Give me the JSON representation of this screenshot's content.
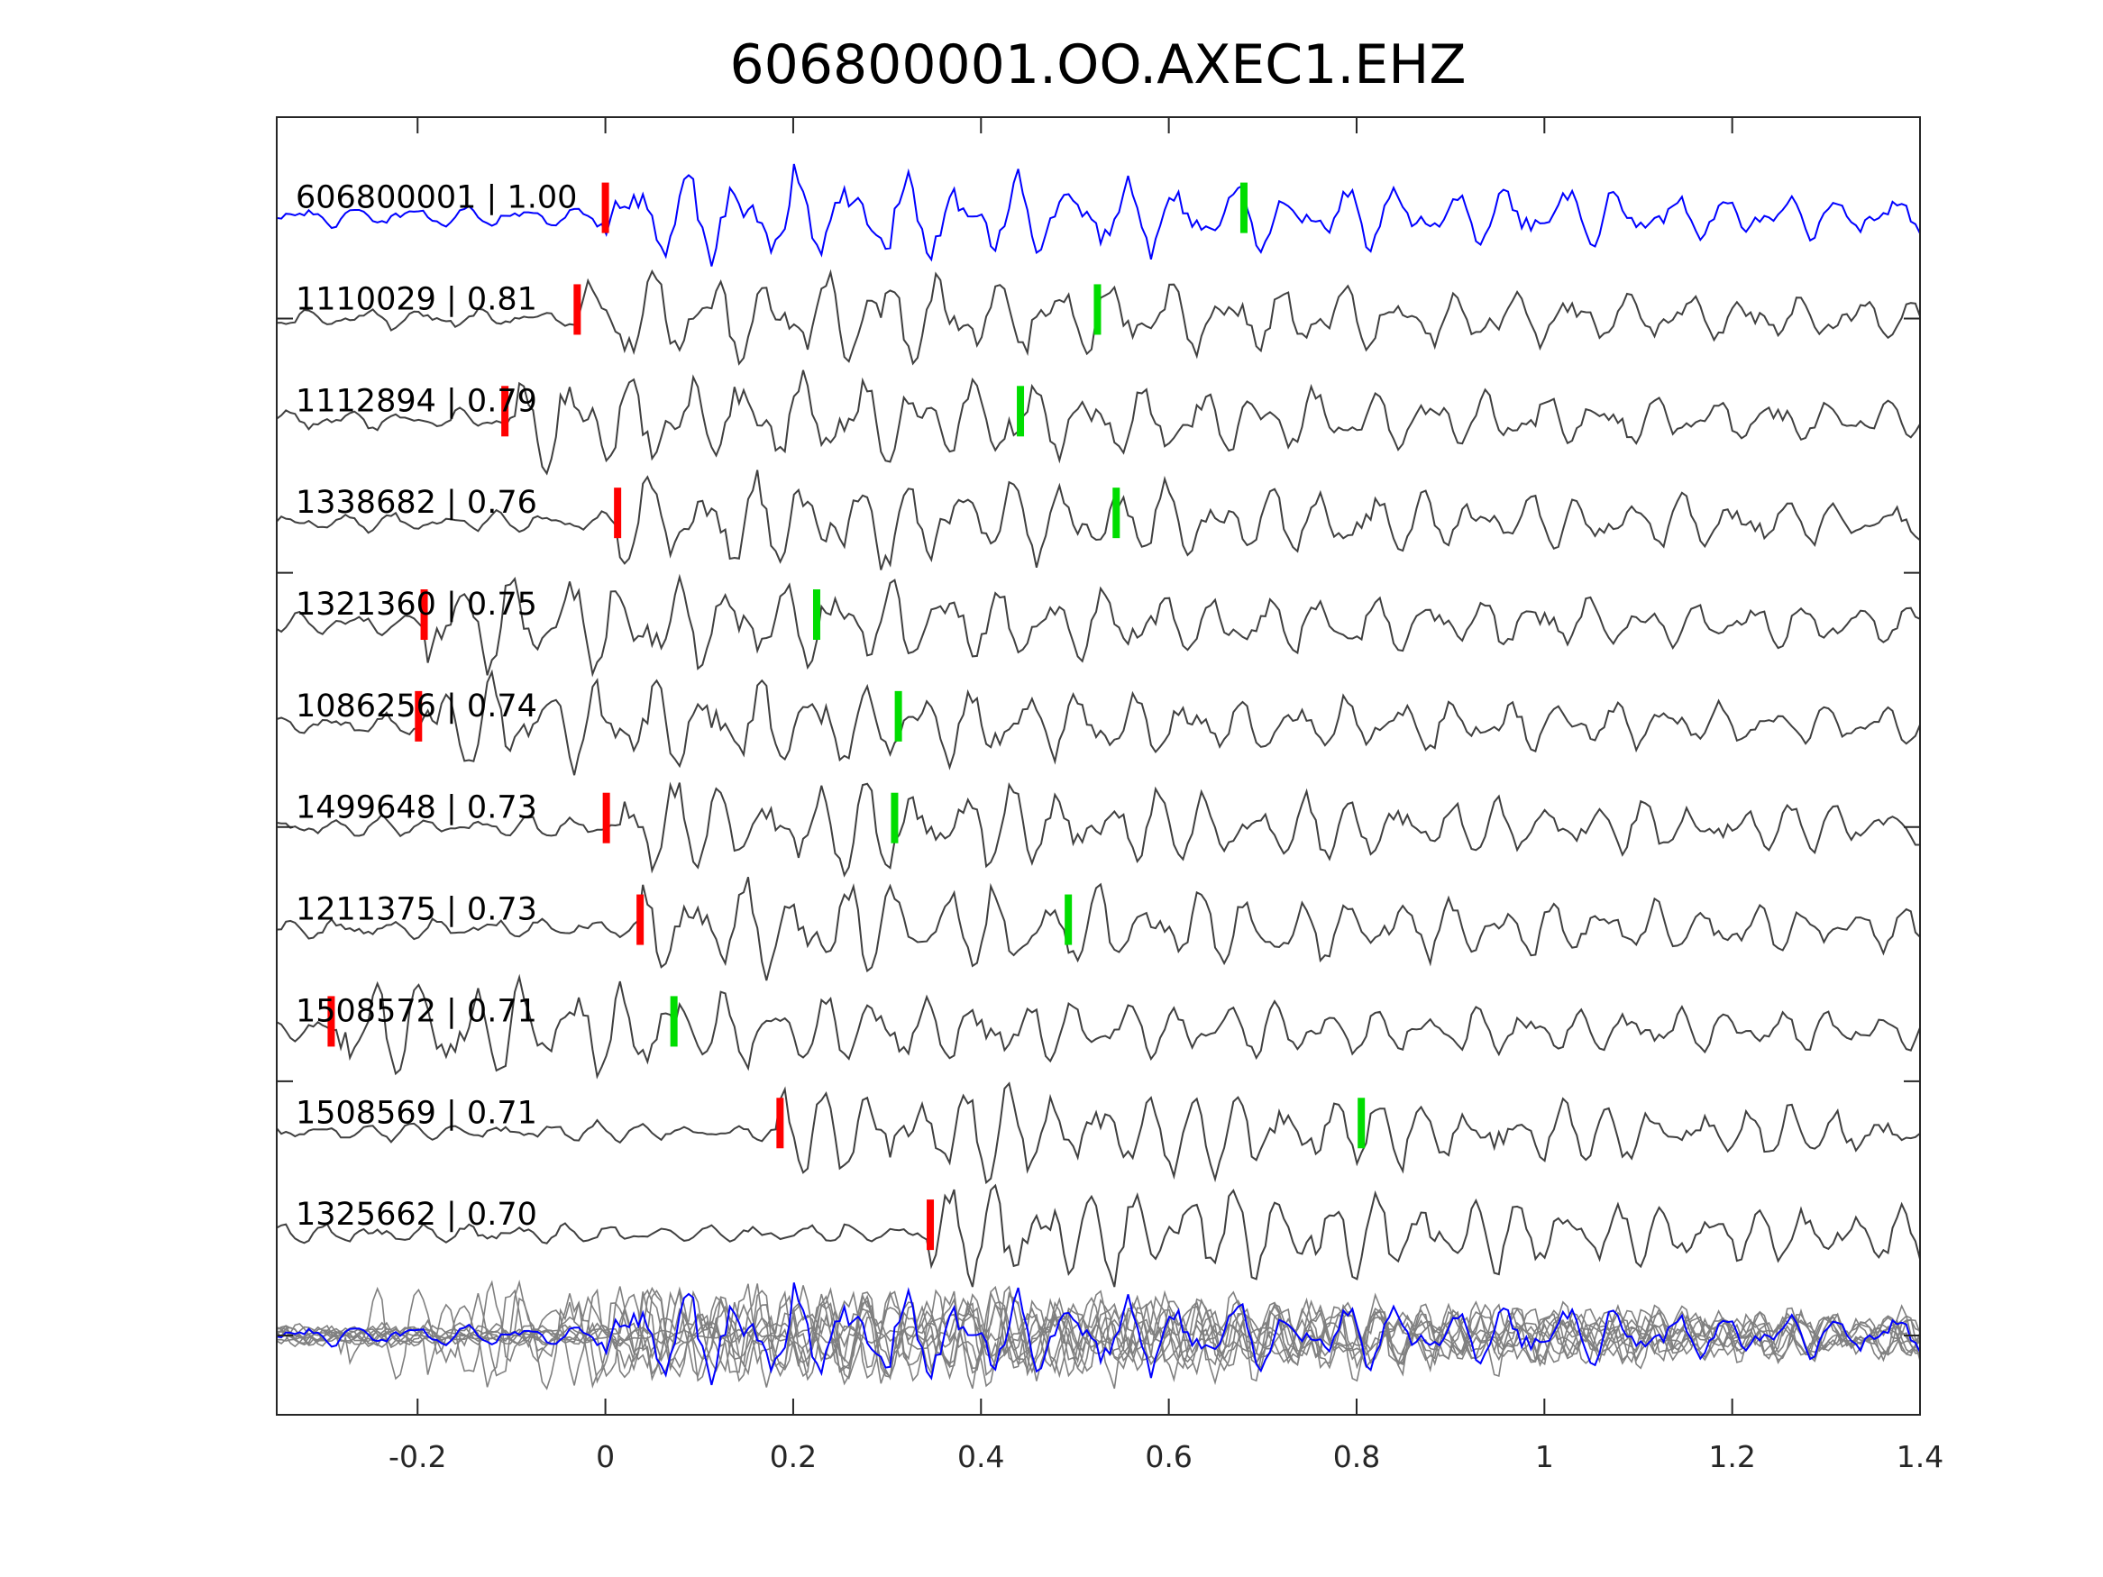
{
  "chart_data": {
    "type": "line",
    "title": "606800001.OO.AXEC1.EHZ",
    "xlabel": "",
    "ylabel": "",
    "xlim": [
      -0.35,
      1.4
    ],
    "ylim": [
      -0.78,
      11.98
    ],
    "xticks": [
      "-0.2",
      "0",
      "0.2",
      "0.4",
      "0.6",
      "0.8",
      "1",
      "1.2",
      "1.4"
    ],
    "xtick_values": [
      -0.2,
      0,
      0.2,
      0.4,
      0.6,
      0.8,
      1,
      1.2,
      1.4
    ],
    "ytick_values": [
      0,
      2.5,
      5,
      7.5,
      10
    ],
    "grid": false,
    "colors": {
      "reference": "#0000ff",
      "trace": "#404040",
      "stack": "#808080",
      "p_pick": "#ff0000",
      "s_pick": "#00dd00"
    },
    "traces": [
      {
        "label": "606800001 | 1.00",
        "offset": 11,
        "reference": true,
        "p_pick": 0.0,
        "s_pick": 0.68,
        "seed": 11
      },
      {
        "label": "1110029 | 0.81",
        "offset": 10,
        "p_pick": -0.03,
        "s_pick": 0.524,
        "seed": 23
      },
      {
        "label": "1112894 | 0.79",
        "offset": 9,
        "p_pick": -0.107,
        "s_pick": 0.442,
        "seed": 37
      },
      {
        "label": "1338682 | 0.76",
        "offset": 8,
        "p_pick": 0.013,
        "s_pick": 0.544,
        "seed": 41
      },
      {
        "label": "1321360 | 0.75",
        "offset": 7,
        "p_pick": -0.193,
        "s_pick": 0.225,
        "seed": 53
      },
      {
        "label": "1086256 | 0.74",
        "offset": 6,
        "p_pick": -0.199,
        "s_pick": 0.312,
        "seed": 67
      },
      {
        "label": "1499648 | 0.73",
        "offset": 5,
        "p_pick": 0.001,
        "s_pick": 0.308,
        "seed": 71
      },
      {
        "label": "1211375 | 0.73",
        "offset": 4,
        "p_pick": 0.037,
        "s_pick": 0.493,
        "seed": 83
      },
      {
        "label": "1508572 | 0.71",
        "offset": 3,
        "p_pick": -0.292,
        "s_pick": 0.073,
        "seed": 97
      },
      {
        "label": "1508569 | 0.71",
        "offset": 2,
        "p_pick": 0.186,
        "s_pick": 0.805,
        "seed": 101
      },
      {
        "label": "1325662 | 0.70",
        "offset": 1,
        "p_pick": 0.346,
        "s_pick": null,
        "seed": 113
      }
    ],
    "stack_offset": 0
  }
}
